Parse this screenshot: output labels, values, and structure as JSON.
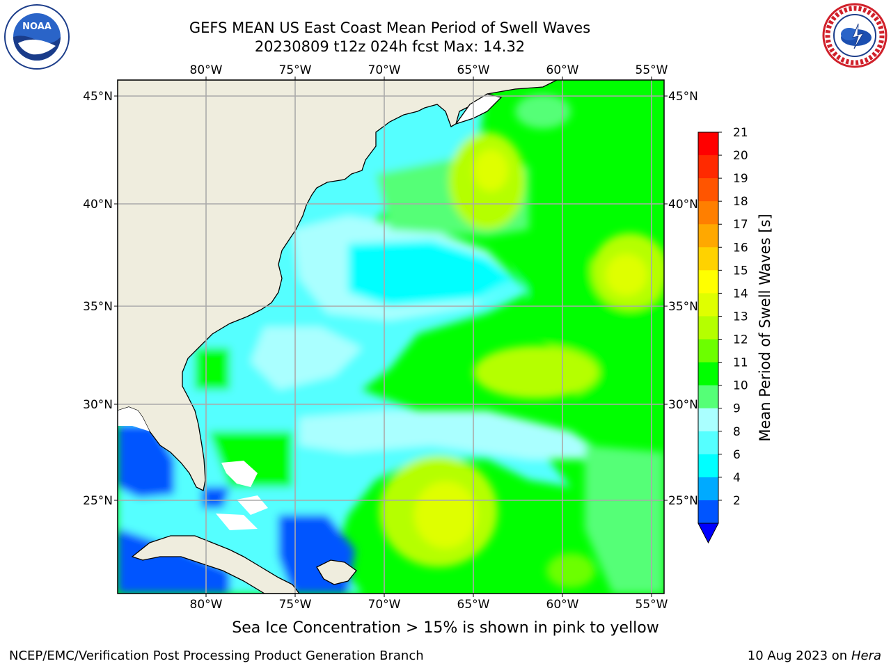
{
  "header": {
    "title_line1": "GEFS MEAN US East Coast Mean Period of Swell Waves",
    "title_line2": "20230809 t12z 024h fcst   Max: 14.32"
  },
  "logos": {
    "left": "noaa-logo",
    "left_text": "NOAA",
    "right": "national-weather-service-logo"
  },
  "map": {
    "lon_ticks": [
      "80°W",
      "75°W",
      "70°W",
      "65°W",
      "60°W",
      "55°W"
    ],
    "lat_ticks_left": [
      "45°N",
      "40°N",
      "35°N",
      "30°N",
      "25°N"
    ],
    "lat_ticks_right": [
      "45°N",
      "40°N",
      "35°N",
      "30°N",
      "25°N"
    ],
    "lon_range": [
      -85,
      -54
    ],
    "lat_range": [
      20.5,
      46.5
    ],
    "colors": {
      "land": "#efedde",
      "water_default": "#00ff00",
      "grid": "#aaaaaa"
    }
  },
  "colorbar": {
    "label": "Mean Period of Swell Waves [s]",
    "ticks": [
      "21",
      "20",
      "19",
      "18",
      "17",
      "16",
      "15",
      "14",
      "13",
      "12",
      "11",
      "10",
      "9",
      "8",
      "6",
      "4",
      "2"
    ],
    "colors": [
      "#ff0000",
      "#ff2a00",
      "#ff5500",
      "#ff7f00",
      "#ffa800",
      "#ffd200",
      "#ffff00",
      "#dfff00",
      "#b5ff00",
      "#6cff00",
      "#00ff00",
      "#55ff77",
      "#aaffff",
      "#55ffff",
      "#00ffff",
      "#00aaff",
      "#0055ff"
    ],
    "extend_color": "#0000ff"
  },
  "footer": {
    "note": "Sea Ice Concentration > 15% is shown in pink to yellow",
    "credit": "NCEP/EMC/Verification Post Processing Product Generation Branch",
    "date": "10 Aug 2023 on",
    "host": "Hera"
  }
}
